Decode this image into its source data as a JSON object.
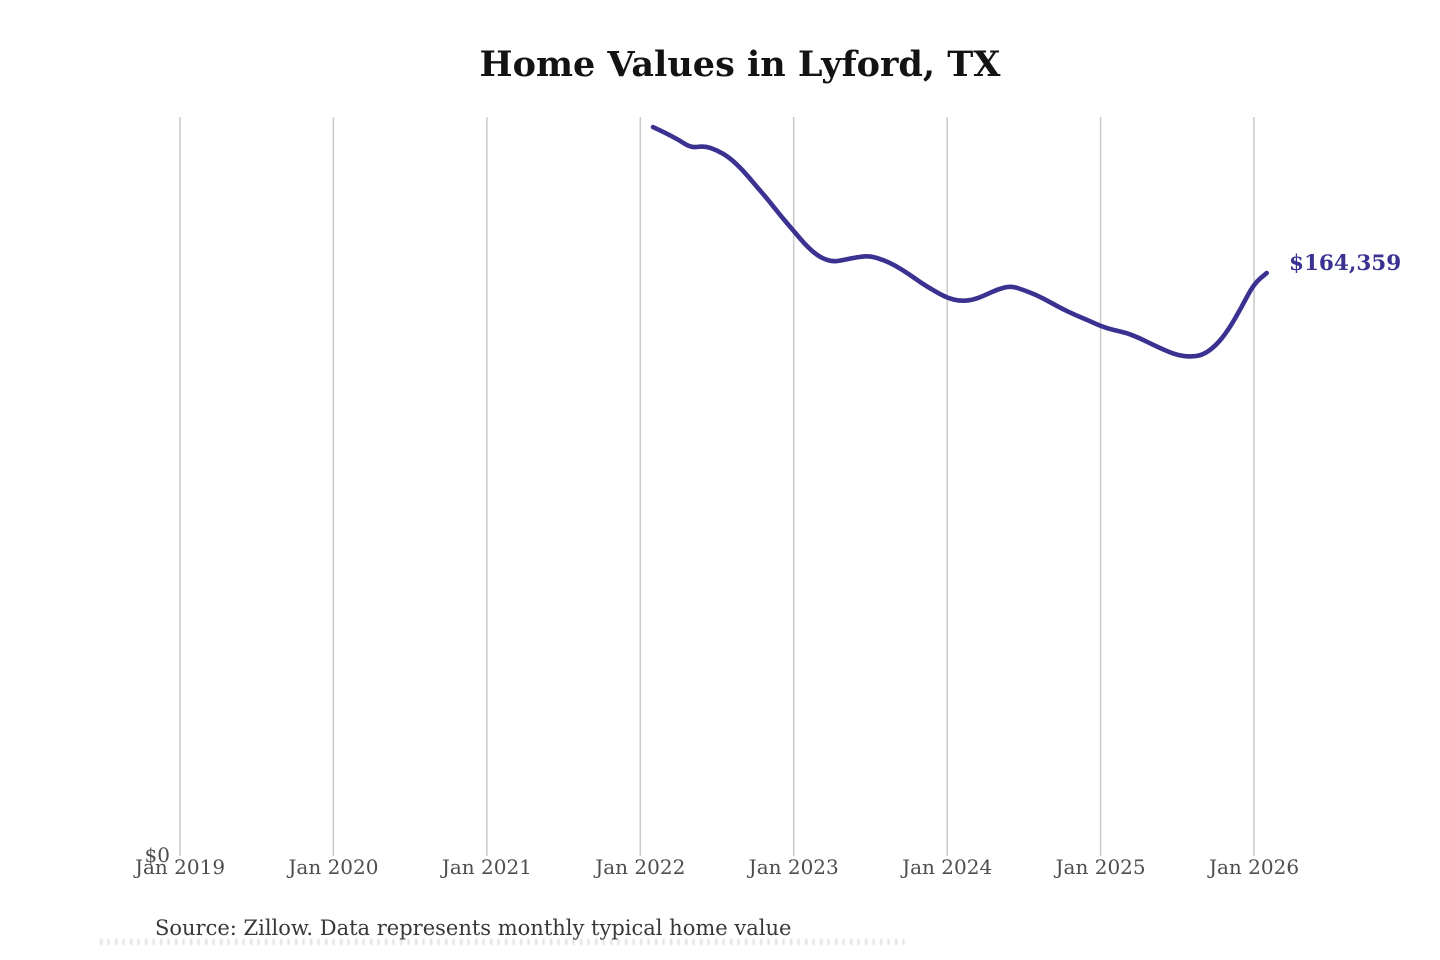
{
  "title": "Home Values in Lyford, TX",
  "source_note": "Source: Zillow. Data represents monthly typical home value",
  "end_label": "$164,359",
  "y_axis": {
    "zero_label": "$0"
  },
  "x_axis": {
    "tick_labels": [
      "Jan 2019",
      "Jan 2020",
      "Jan 2021",
      "Jan 2022",
      "Jan 2023",
      "Jan 2024",
      "Jan 2025",
      "Jan 2026"
    ]
  },
  "colors": {
    "line": "#3a3191",
    "end_label_text": "#3a3191",
    "gridline": "#c9c9c9",
    "axis_text": "#4d4d4d",
    "title_text": "#131313",
    "source_text": "#383838"
  },
  "chart_data": {
    "type": "line",
    "title": "Home Values in Lyford, TX",
    "xlabel": "",
    "ylabel": "",
    "ylim": [
      0,
      210000
    ],
    "y_axis_visible_labels": [
      "$0"
    ],
    "x_tick_labels": [
      "Jan 2019",
      "Jan 2020",
      "Jan 2021",
      "Jan 2022",
      "Jan 2023",
      "Jan 2024",
      "Jan 2025",
      "Jan 2026"
    ],
    "grid": "vertical-only",
    "legend": "none",
    "end_value": 164359,
    "end_value_label": "$164,359",
    "series": [
      {
        "name": "Monthly typical home value",
        "x": [
          "Feb 2022",
          "Mar 2022",
          "Apr 2022",
          "May 2022",
          "Jun 2022",
          "Jul 2022",
          "Aug 2022",
          "Sep 2022",
          "Oct 2022",
          "Nov 2022",
          "Dec 2022",
          "Jan 2023",
          "Feb 2023",
          "Mar 2023",
          "Apr 2023",
          "May 2023",
          "Jun 2023",
          "Jul 2023",
          "Aug 2023",
          "Sep 2023",
          "Oct 2023",
          "Nov 2023",
          "Dec 2023",
          "Jan 2024",
          "Feb 2024",
          "Mar 2024",
          "Apr 2024",
          "May 2024",
          "Jun 2024",
          "Jul 2024",
          "Aug 2024",
          "Sep 2024",
          "Oct 2024",
          "Nov 2024",
          "Dec 2024",
          "Jan 2025",
          "Feb 2025",
          "Mar 2025",
          "Apr 2025",
          "May 2025",
          "Jun 2025",
          "Jul 2025",
          "Aug 2025",
          "Sep 2025",
          "Oct 2025",
          "Nov 2025",
          "Dec 2025",
          "Jan 2026",
          "Feb 2026"
        ],
        "values": [
          205700,
          204000,
          202100,
          199800,
          200400,
          199200,
          197000,
          193600,
          189300,
          185100,
          180500,
          176300,
          172000,
          168900,
          167500,
          168100,
          168900,
          169200,
          168100,
          166400,
          164100,
          161500,
          159300,
          157300,
          156400,
          156700,
          158100,
          159800,
          160700,
          159500,
          158100,
          156200,
          154200,
          152500,
          151000,
          149300,
          148200,
          147400,
          146000,
          144200,
          142500,
          141100,
          140600,
          141100,
          143700,
          148200,
          154500,
          161300,
          164359
        ]
      }
    ]
  }
}
